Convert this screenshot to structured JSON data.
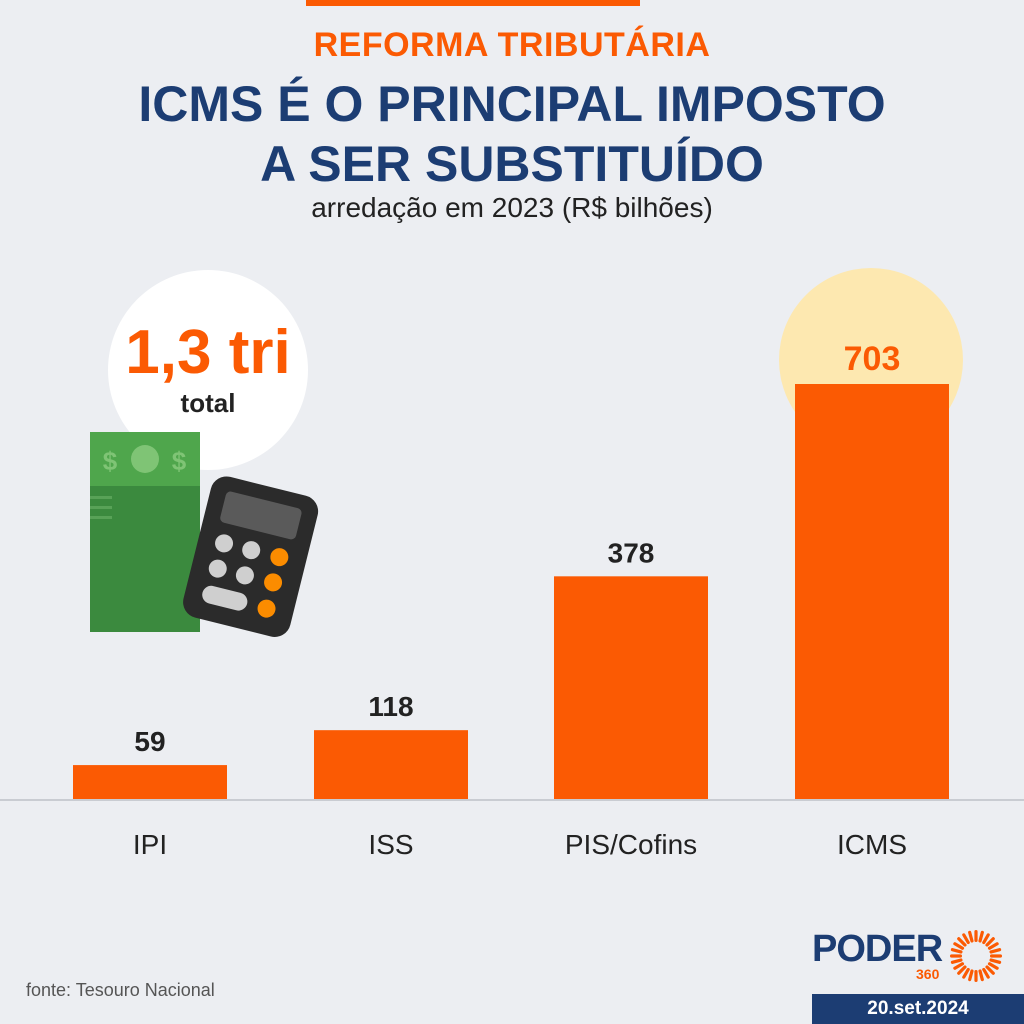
{
  "header": {
    "kicker": "REFORMA TRIBUTÁRIA",
    "title_line1": "ICMS É O PRINCIPAL IMPOSTO",
    "title_line2": "A SER SUBSTITUÍDO",
    "subtitle": "arredação em 2023 (R$ bilhões)"
  },
  "total_badge": {
    "value": "1,3 tri",
    "label": "total"
  },
  "chart_data": {
    "type": "bar",
    "title": "ICMS É O PRINCIPAL IMPOSTO A SER SUBSTITUÍDO",
    "subtitle": "arredação em 2023 (R$ bilhões)",
    "xlabel": "",
    "ylabel": "",
    "categories": [
      "IPI",
      "ISS",
      "PIS/Cofins",
      "ICMS"
    ],
    "values": [
      59,
      118,
      378,
      703
    ],
    "highlight": "ICMS",
    "ylim": [
      0,
      703
    ],
    "grid": false,
    "bar_color": "#fb5a03",
    "highlight_label_color": "#fb5a03",
    "highlight_halo_color": "#fde8b0",
    "label_color": "#222222"
  },
  "footer": {
    "source": "fonte: Tesouro Nacional",
    "brand": "PODER",
    "brand_number": "360",
    "date": "20.set.2024"
  },
  "colors": {
    "background": "#eceef2",
    "accent": "#fb5a03",
    "navy": "#1c3d73"
  },
  "icons": [
    "money-bill-icon",
    "calculator-icon",
    "poder360-sun-icon"
  ]
}
